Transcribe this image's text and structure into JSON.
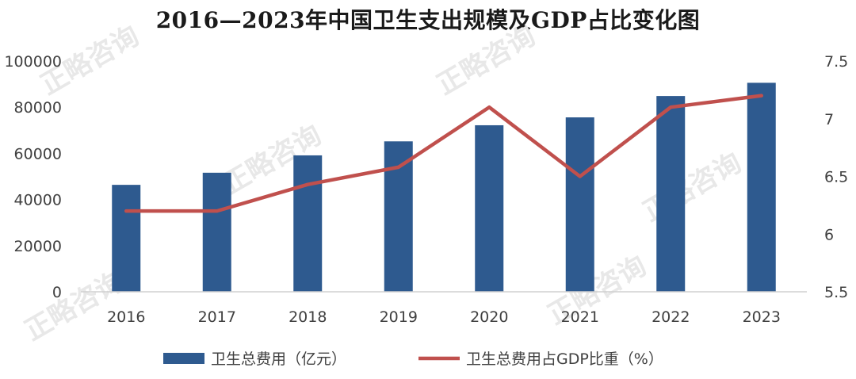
{
  "watermark": "正略咨询",
  "chart_data": {
    "type": "bar+line",
    "title": "2016—2023年中国卫生支出规模及GDP占比变化图",
    "categories": [
      "2016",
      "2017",
      "2018",
      "2019",
      "2020",
      "2021",
      "2022",
      "2023"
    ],
    "series": [
      {
        "name": "卫生总费用（亿元）",
        "type": "bar",
        "axis": "left",
        "color": "#2e5a8f",
        "values": [
          46345,
          51599,
          59122,
          65196,
          72175,
          75593,
          84847,
          90576
        ]
      },
      {
        "name": "卫生总费用占GDP比重（%）",
        "type": "line",
        "axis": "right",
        "color": "#c0504d",
        "values": [
          6.2,
          6.2,
          6.43,
          6.58,
          7.1,
          6.5,
          7.1,
          7.2
        ]
      }
    ],
    "y_left": {
      "min": 0,
      "max": 100000,
      "ticks": [
        "0",
        "20000",
        "40000",
        "60000",
        "80000",
        "100000"
      ]
    },
    "y_right": {
      "min": 5.5,
      "max": 7.5,
      "ticks": [
        "5.5",
        "6",
        "6.5",
        "7",
        "7.5"
      ]
    },
    "legend_position": "bottom",
    "grid": false
  }
}
